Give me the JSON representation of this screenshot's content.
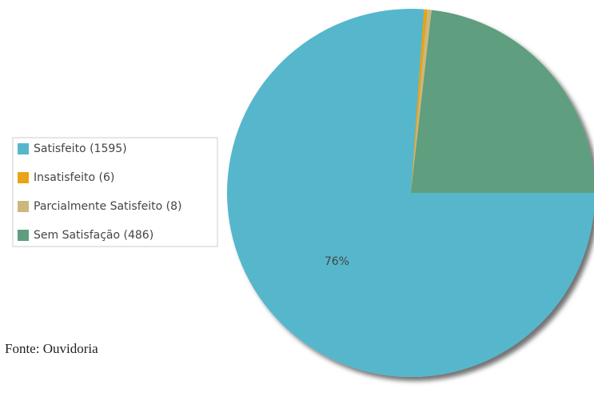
{
  "chart_data": {
    "type": "pie",
    "categories": [
      "Satisfeito (1595)",
      "Insatisfeito (6)",
      "Parcialmente Satisfeito (8)",
      "Sem Satisfação (486)"
    ],
    "values": [
      76.13,
      0.29,
      0.38,
      23.2
    ],
    "value_labels": [
      "76%",
      null,
      null,
      null
    ],
    "colors": [
      "#56b7cc",
      "#e8a317",
      "#cdb77c",
      "#5e9e7f"
    ],
    "legend": "left",
    "source": "Fonte: Ouvidoria"
  }
}
